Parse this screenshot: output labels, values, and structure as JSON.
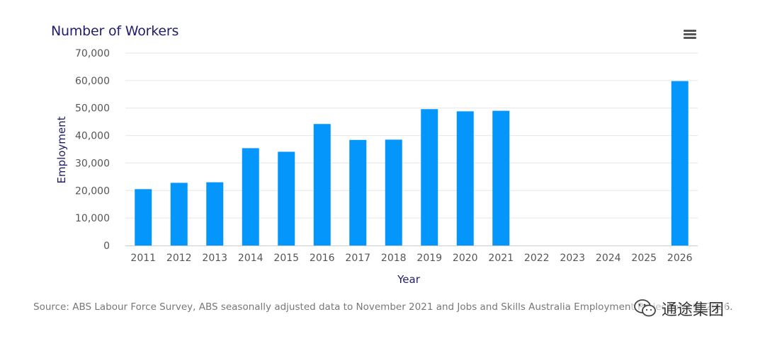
{
  "header": {
    "title": "Number of Workers",
    "menu_icon": "hamburger-menu-icon"
  },
  "chart_data": {
    "type": "bar",
    "title": "Number of Workers",
    "xlabel": "Year",
    "ylabel": "Employment",
    "categories": [
      "2011",
      "2012",
      "2013",
      "2014",
      "2015",
      "2016",
      "2017",
      "2018",
      "2019",
      "2020",
      "2021",
      "2022",
      "2023",
      "2024",
      "2025",
      "2026"
    ],
    "values": [
      20500,
      22800,
      23000,
      35400,
      34100,
      44200,
      38400,
      38500,
      49600,
      48800,
      49000,
      null,
      null,
      null,
      null,
      59800
    ],
    "ylim": [
      0,
      70000
    ],
    "yticks": [
      "0",
      "10,000",
      "20,000",
      "30,000",
      "40,000",
      "50,000",
      "60,000",
      "70,000"
    ],
    "ytick_values": [
      0,
      10000,
      20000,
      30000,
      40000,
      50000,
      60000,
      70000
    ],
    "grid": true,
    "bar_color": "#0596fb",
    "grid_color": "#e6e6e6"
  },
  "footer": {
    "source_text": "Source: ABS Labour Force Survey, ABS seasonally adjusted data to November 2021 and Jobs and Skills Australia Employment Projections to 2026."
  },
  "watermark": {
    "text": "通途集团",
    "icon": "wechat-icon"
  }
}
